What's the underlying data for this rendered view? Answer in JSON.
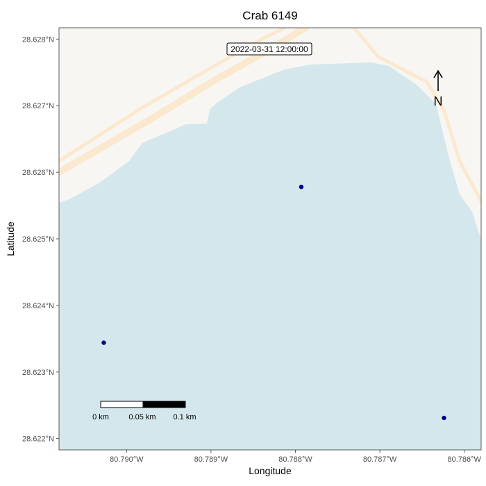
{
  "title": "Crab 6149",
  "timestamp": "2022-03-31 12:00:00",
  "x_axis": {
    "label": "Longitude",
    "ticks": [
      "80.790°W",
      "80.789°W",
      "80.788°W",
      "80.787°W",
      "80.786°W"
    ]
  },
  "y_axis": {
    "label": "Latitude",
    "ticks": [
      "28.628°N",
      "28.627°N",
      "28.626°N",
      "28.625°N",
      "28.624°N",
      "28.623°N",
      "28.622°N"
    ]
  },
  "north_arrow": {
    "label": "N"
  },
  "scale_bar": {
    "labels": [
      "0 km",
      "0.05 km",
      "0.1 km"
    ]
  },
  "colors": {
    "water": "#d4e7ec",
    "land": "#f8f6f2",
    "road": "#fbe9cf",
    "point": "#00008b"
  },
  "chart_data": {
    "type": "scatter",
    "xlim": [
      -80.7908,
      -80.7858
    ],
    "ylim": [
      28.62183,
      28.62817
    ],
    "points": [
      {
        "lon": -80.78793,
        "lat": 28.62578
      },
      {
        "lon": -80.79027,
        "lat": 28.62344
      },
      {
        "lon": -80.78624,
        "lat": 28.62231
      }
    ]
  }
}
